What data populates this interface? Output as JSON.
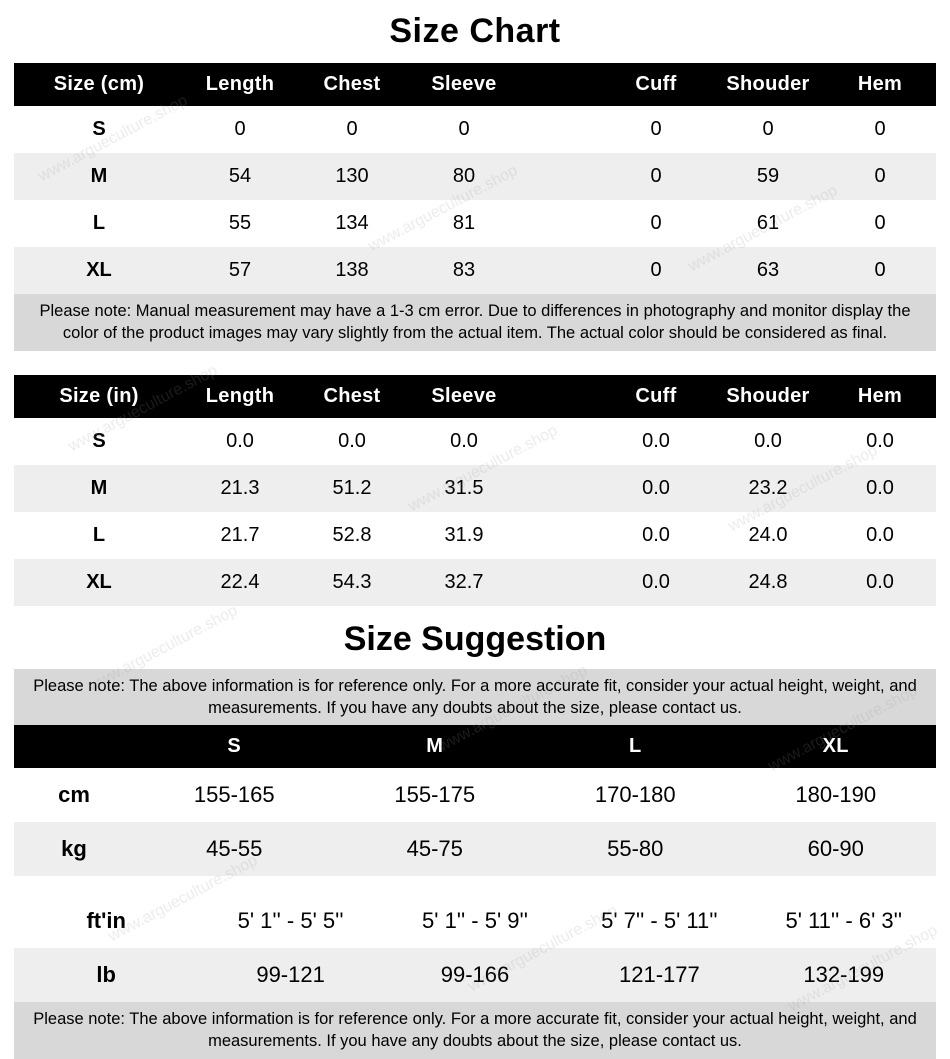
{
  "titles": {
    "size_chart": "Size Chart",
    "size_suggestion": "Size Suggestion"
  },
  "chart_cm": {
    "columns": [
      "Size (cm)",
      "Length",
      "Chest",
      "Sleeve",
      "",
      "Cuff",
      "Shouder",
      "Hem"
    ],
    "rows": [
      {
        "label": "S",
        "vals": [
          "0",
          "0",
          "0",
          "",
          "0",
          "0",
          "0"
        ]
      },
      {
        "label": "M",
        "vals": [
          "54",
          "130",
          "80",
          "",
          "0",
          "59",
          "0"
        ]
      },
      {
        "label": "L",
        "vals": [
          "55",
          "134",
          "81",
          "",
          "0",
          "61",
          "0"
        ]
      },
      {
        "label": "XL",
        "vals": [
          "57",
          "138",
          "83",
          "",
          "0",
          "63",
          "0"
        ]
      }
    ]
  },
  "chart_in": {
    "columns": [
      "Size (in)",
      "Length",
      "Chest",
      "Sleeve",
      "",
      "Cuff",
      "Shouder",
      "Hem"
    ],
    "rows": [
      {
        "label": "S",
        "vals": [
          "0.0",
          "0.0",
          "0.0",
          "",
          "0.0",
          "0.0",
          "0.0"
        ]
      },
      {
        "label": "M",
        "vals": [
          "21.3",
          "51.2",
          "31.5",
          "",
          "0.0",
          "23.2",
          "0.0"
        ]
      },
      {
        "label": "L",
        "vals": [
          "21.7",
          "52.8",
          "31.9",
          "",
          "0.0",
          "24.0",
          "0.0"
        ]
      },
      {
        "label": "XL",
        "vals": [
          "22.4",
          "54.3",
          "32.7",
          "",
          "0.0",
          "24.8",
          "0.0"
        ]
      }
    ]
  },
  "note_measurement": "Please note: Manual measurement may have a 1-3 cm error. Due to differences in photography and monitor display the color of the product images may vary slightly from the actual item. The actual color should be considered as final.",
  "note_suggestion": "Please note: The above information is for reference only. For a more accurate fit, consider your actual height, weight, and measurements. If you have any doubts about the size, please contact us.",
  "suggestion": {
    "columns": [
      "",
      "S",
      "M",
      "L",
      "XL"
    ],
    "rows_top": [
      {
        "label": "cm",
        "vals": [
          "155-165",
          "155-175",
          "170-180",
          "180-190"
        ]
      },
      {
        "label": "kg",
        "vals": [
          "45-55",
          "45-75",
          "55-80",
          "60-90"
        ]
      }
    ],
    "rows_bottom": [
      {
        "label": "ft'in",
        "vals": [
          "5' 1'' - 5' 5''",
          "5' 1'' - 5' 9''",
          "5' 7'' - 5' 11''",
          "5' 11'' - 6' 3''"
        ]
      },
      {
        "label": "lb",
        "vals": [
          "99-121",
          "99-166",
          "121-177",
          "132-199"
        ]
      }
    ]
  },
  "watermark_text": "www.argueculture.shop",
  "colors": {
    "header_bg": "#000000",
    "header_fg": "#ffffff",
    "row_odd": "#ffffff",
    "row_even": "#eeeeee",
    "note_bg": "#d8d8d8"
  }
}
